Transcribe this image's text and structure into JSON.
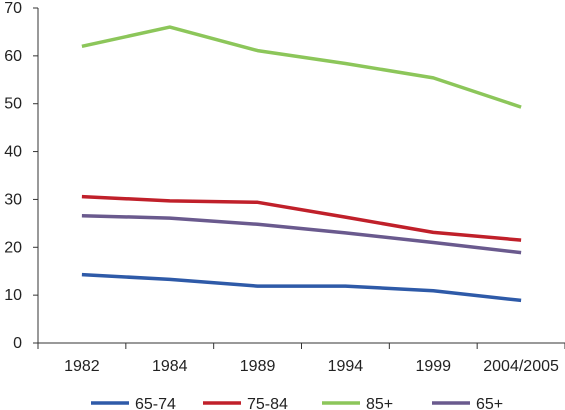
{
  "chart_data": {
    "type": "line",
    "title": "",
    "xlabel": "",
    "ylabel": "",
    "categories": [
      "1982",
      "1984",
      "1989",
      "1994",
      "1999",
      "2004/2005"
    ],
    "y_ticks": [
      "0",
      "10",
      "20",
      "30",
      "40",
      "50",
      "60",
      "70"
    ],
    "ylim": [
      0,
      70
    ],
    "grid": false,
    "legend_position": "bottom",
    "series": [
      {
        "name": "65-74",
        "color": "#2e5aa8",
        "values": [
          14.3,
          13.3,
          11.9,
          11.9,
          10.9,
          8.9
        ]
      },
      {
        "name": "75-84",
        "color": "#c0202a",
        "values": [
          30.6,
          29.7,
          29.4,
          26.3,
          23.1,
          21.5
        ]
      },
      {
        "name": "85+",
        "color": "#8cc65a",
        "values": [
          62.0,
          66.0,
          61.1,
          58.4,
          55.4,
          49.3
        ]
      },
      {
        "name": "65+",
        "color": "#6a5a8e",
        "values": [
          26.6,
          26.1,
          24.8,
          23.0,
          21.0,
          18.9
        ]
      }
    ]
  }
}
